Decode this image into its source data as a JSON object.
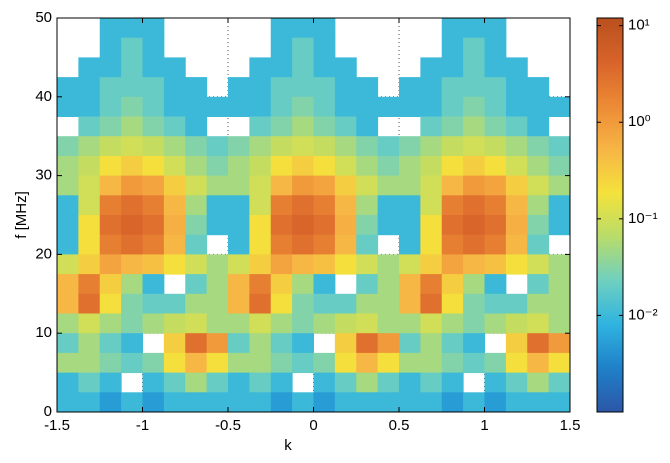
{
  "chart_data": {
    "type": "heatmap",
    "xlabel": "k",
    "ylabel": "f [MHz]",
    "xlim": [
      -1.5,
      1.5
    ],
    "ylim": [
      0,
      50
    ],
    "xticks": [
      -1.5,
      -1,
      -0.5,
      0,
      0.5,
      1,
      1.5
    ],
    "yticks": [
      0,
      10,
      20,
      30,
      40,
      50
    ],
    "grid": true,
    "log_color": true,
    "zlim": [
      0.001,
      12
    ],
    "zticks": [
      {
        "value": 0.01,
        "label": "10⁻²"
      },
      {
        "value": 0.1,
        "label": "10⁻¹"
      },
      {
        "value": 1,
        "label": "10⁰"
      },
      {
        "value": 10,
        "label": "10¹"
      }
    ],
    "colormap": [
      "#2b57a8",
      "#1f80c8",
      "#2fb3e0",
      "#6fd0c0",
      "#b8dc6a",
      "#f4e23c",
      "#f7b545",
      "#ec8a35",
      "#d8632a",
      "#b9501e"
    ],
    "xbins": [
      -1.5,
      -1.375,
      -1.25,
      -1.125,
      -1,
      -0.875,
      -0.75,
      -0.625,
      -0.5,
      -0.375,
      -0.25,
      -0.125,
      0,
      0.125,
      0.25,
      0.375,
      0.5,
      0.625,
      0.75,
      0.875,
      1,
      1.125,
      1.25,
      1.375,
      1.5
    ],
    "ybins": [
      50,
      47.5,
      45,
      42.5,
      40,
      37.5,
      35,
      32.5,
      30,
      27.5,
      25,
      22.5,
      20,
      17.5,
      15,
      12.5,
      10,
      7.5,
      5,
      2.5,
      0
    ],
    "z": [
      [
        null,
        null,
        0.01,
        0.01,
        0.01,
        null,
        null,
        null,
        null,
        null,
        0.01,
        0.01,
        0.01,
        null,
        null,
        null,
        null,
        null,
        0.01,
        0.01,
        0.01,
        null,
        null,
        null
      ],
      [
        null,
        null,
        0.01,
        0.02,
        0.01,
        null,
        null,
        null,
        null,
        null,
        0.01,
        0.02,
        0.01,
        null,
        null,
        null,
        null,
        null,
        0.01,
        0.02,
        0.01,
        null,
        null,
        null
      ],
      [
        null,
        0.01,
        0.01,
        0.02,
        0.01,
        0.01,
        null,
        null,
        null,
        0.01,
        0.01,
        0.02,
        0.01,
        0.01,
        null,
        null,
        null,
        0.01,
        0.01,
        0.02,
        0.01,
        0.01,
        null,
        null
      ],
      [
        0.01,
        0.01,
        0.02,
        0.02,
        0.02,
        0.01,
        0.01,
        null,
        0.01,
        0.01,
        0.02,
        0.02,
        0.02,
        0.01,
        0.01,
        null,
        0.01,
        0.01,
        0.02,
        0.02,
        0.02,
        0.01,
        0.01,
        null
      ],
      [
        0.01,
        0.01,
        0.02,
        0.03,
        0.02,
        0.01,
        0.01,
        0.01,
        0.01,
        0.01,
        0.02,
        0.03,
        0.02,
        0.01,
        0.01,
        0.01,
        0.01,
        0.01,
        0.02,
        0.03,
        0.02,
        0.01,
        0.01,
        0.01
      ],
      [
        null,
        0.02,
        0.03,
        0.05,
        0.03,
        0.02,
        0.01,
        null,
        null,
        0.02,
        0.03,
        0.05,
        0.03,
        0.02,
        0.01,
        null,
        null,
        0.02,
        0.03,
        0.05,
        0.03,
        0.02,
        0.01,
        null
      ],
      [
        0.03,
        0.05,
        0.08,
        0.1,
        0.08,
        0.05,
        0.03,
        0.02,
        0.03,
        0.05,
        0.08,
        0.1,
        0.08,
        0.05,
        0.03,
        0.02,
        0.03,
        0.05,
        0.08,
        0.1,
        0.08,
        0.05,
        0.03,
        0.02
      ],
      [
        0.05,
        0.08,
        0.2,
        0.3,
        0.2,
        0.1,
        0.05,
        0.03,
        0.05,
        0.08,
        0.2,
        0.3,
        0.2,
        0.1,
        0.05,
        0.03,
        0.05,
        0.08,
        0.2,
        0.3,
        0.2,
        0.1,
        0.05,
        0.03
      ],
      [
        0.05,
        0.1,
        0.5,
        1,
        0.8,
        0.3,
        0.1,
        0.05,
        0.05,
        0.1,
        0.5,
        1,
        0.8,
        0.3,
        0.1,
        0.05,
        0.05,
        0.1,
        0.5,
        1,
        0.8,
        0.3,
        0.1,
        0.05
      ],
      [
        0.01,
        0.1,
        2,
        3,
        2,
        0.5,
        0.05,
        0.01,
        0.01,
        0.1,
        2,
        3,
        2,
        0.5,
        0.05,
        0.01,
        0.01,
        0.1,
        2,
        3,
        2,
        0.5,
        0.05,
        0.01
      ],
      [
        0.01,
        0.2,
        3,
        4,
        3,
        0.6,
        0.03,
        0.01,
        0.01,
        0.2,
        3,
        4,
        3,
        0.6,
        0.03,
        0.01,
        0.01,
        0.2,
        3,
        4,
        3,
        0.6,
        0.03,
        0.01
      ],
      [
        0.01,
        0.2,
        2,
        3,
        2,
        0.5,
        0.02,
        null,
        0.01,
        0.2,
        2,
        3,
        2,
        0.5,
        0.02,
        null,
        0.01,
        0.2,
        2,
        3,
        2,
        0.5,
        0.02,
        null
      ],
      [
        0.1,
        0.3,
        0.8,
        0.5,
        0.4,
        0.2,
        0.1,
        0.05,
        0.1,
        0.3,
        0.8,
        0.5,
        0.4,
        0.2,
        0.1,
        0.05,
        0.1,
        0.3,
        0.8,
        0.5,
        0.4,
        0.2,
        0.1,
        0.05
      ],
      [
        0.5,
        2,
        0.3,
        0.05,
        0.01,
        null,
        0.02,
        0.05,
        0.5,
        2,
        0.3,
        0.05,
        0.01,
        null,
        0.02,
        0.05,
        0.5,
        2,
        0.3,
        0.05,
        0.01,
        null,
        0.02,
        0.05
      ],
      [
        0.5,
        3,
        0.2,
        0.03,
        0.02,
        0.02,
        0.05,
        0.05,
        0.5,
        3,
        0.2,
        0.03,
        0.02,
        0.02,
        0.05,
        0.05,
        0.5,
        3,
        0.2,
        0.03,
        0.02,
        0.02,
        0.05,
        0.05
      ],
      [
        0.05,
        0.1,
        0.05,
        0.03,
        0.05,
        0.08,
        0.1,
        0.05,
        0.05,
        0.1,
        0.05,
        0.03,
        0.05,
        0.08,
        0.1,
        0.05,
        0.05,
        0.1,
        0.05,
        0.03,
        0.05,
        0.08,
        0.1,
        0.05
      ],
      [
        0.02,
        0.05,
        0.02,
        0.01,
        null,
        0.3,
        3,
        1,
        0.02,
        0.05,
        0.02,
        0.01,
        null,
        0.3,
        3,
        1,
        0.02,
        0.05,
        0.02,
        0.01,
        null,
        0.3,
        3,
        1
      ],
      [
        0.05,
        0.05,
        0.03,
        0.02,
        0.03,
        0.2,
        0.5,
        0.2,
        0.05,
        0.05,
        0.03,
        0.02,
        0.03,
        0.2,
        0.5,
        0.2,
        0.05,
        0.05,
        0.03,
        0.02,
        0.03,
        0.2,
        0.5,
        0.2
      ],
      [
        0.01,
        0.02,
        0.01,
        null,
        0.01,
        0.02,
        0.05,
        0.02,
        0.01,
        0.02,
        0.01,
        null,
        0.01,
        0.02,
        0.05,
        0.02,
        0.01,
        0.02,
        0.01,
        null,
        0.01,
        0.02,
        0.05,
        0.02
      ],
      [
        0.01,
        0.01,
        0.005,
        0.01,
        0.005,
        0.01,
        0.01,
        0.01,
        0.01,
        0.01,
        0.005,
        0.01,
        0.005,
        0.01,
        0.01,
        0.01,
        0.01,
        0.01,
        0.005,
        0.01,
        0.005,
        0.01,
        0.01,
        0.01
      ]
    ]
  }
}
